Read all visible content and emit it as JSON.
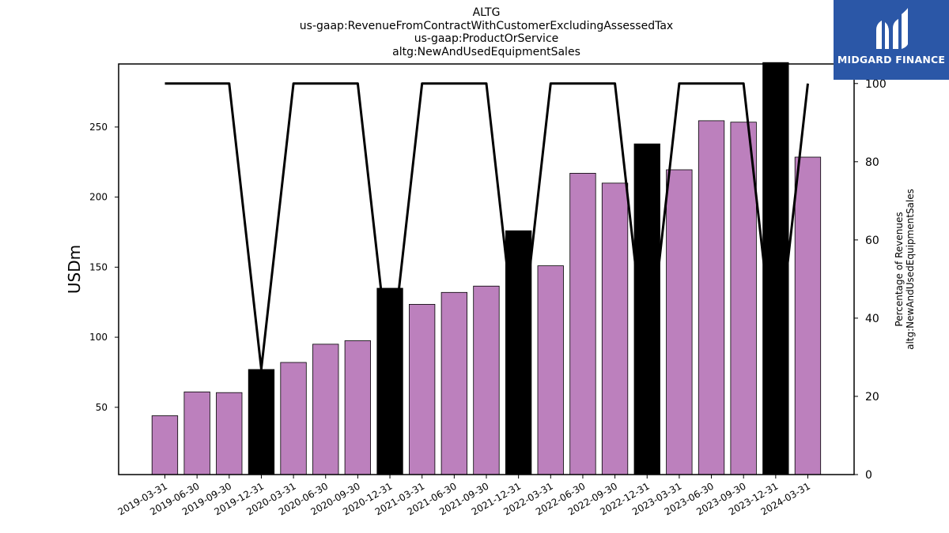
{
  "titles": [
    "ALTG",
    "us-gaap:RevenueFromContractWithCustomerExcludingAssessedTax",
    "us-gaap:ProductOrService",
    "altg:NewAndUsedEquipmentSales"
  ],
  "logo": {
    "text": "MIDGARD FINANCE",
    "color": "#2b57a7"
  },
  "chart_data": {
    "type": "bar",
    "categories": [
      "2019-03-31",
      "2019-06-30",
      "2019-09-30",
      "2019-12-31",
      "2020-03-31",
      "2020-06-30",
      "2020-09-30",
      "2020-12-31",
      "2021-03-31",
      "2021-06-30",
      "2021-09-30",
      "2021-12-31",
      "2022-03-31",
      "2022-06-30",
      "2022-09-30",
      "2022-12-31",
      "2023-03-31",
      "2023-06-30",
      "2023-09-30",
      "2023-12-31",
      "2024-03-31"
    ],
    "series": [
      {
        "values": [
          44,
          61,
          60.5,
          77,
          82,
          95,
          97.5,
          135,
          123.5,
          132,
          136.5,
          176,
          151,
          217,
          210,
          238,
          219.5,
          254.5,
          253.5,
          296,
          228.5
        ],
        "axis": "left"
      },
      {
        "type": "line",
        "axis": "right",
        "values": [
          100,
          100,
          100,
          27,
          100,
          100,
          100,
          27,
          100,
          100,
          100,
          27,
          100,
          100,
          100,
          27,
          100,
          100,
          100,
          27,
          100
        ]
      }
    ],
    "bar_colors": {
      "quarterly": "#bc80bd",
      "fiscal_year_end": "#000000"
    },
    "highlight_indices": [
      3,
      7,
      11,
      15,
      19
    ],
    "line_color": "#000000",
    "ylabel": "USDm",
    "ylabel_right": [
      "Percentage of Revenues",
      "altg:NewAndUsedEquipmentSales"
    ],
    "y_ticks": [
      50,
      100,
      150,
      200,
      250
    ],
    "y_ticks_right": [
      0,
      20,
      40,
      60,
      80,
      100
    ],
    "ylim": [
      2,
      295
    ],
    "ylim_right": [
      0,
      105
    ],
    "grid": false
  }
}
